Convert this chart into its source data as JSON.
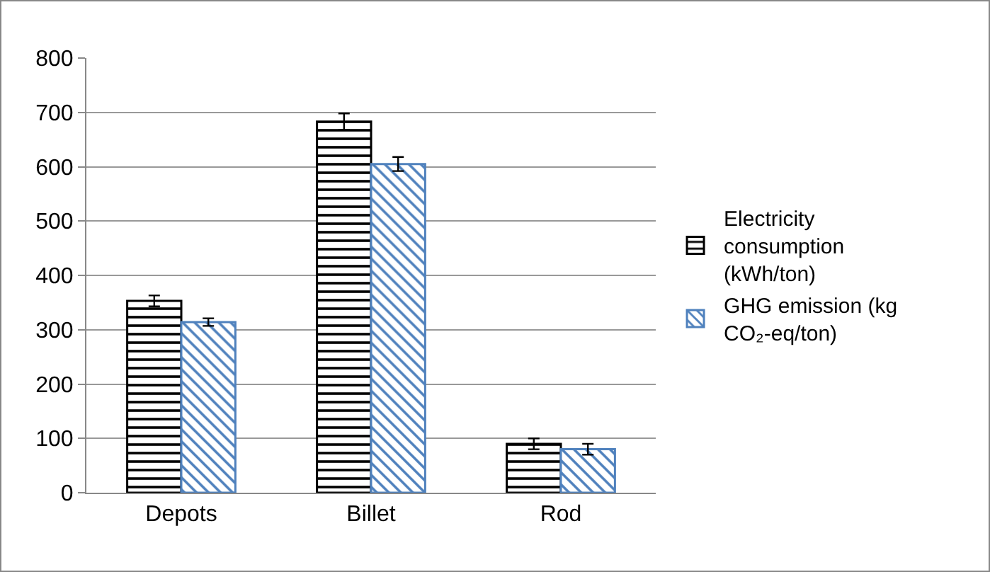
{
  "chart_data": {
    "type": "bar",
    "categories": [
      "Depots",
      "Billet",
      "Rod"
    ],
    "series": [
      {
        "name": "Electricity consumption (kWh/ton)",
        "color": "#000000",
        "values": [
          353,
          683,
          90
        ],
        "errors": [
          10,
          15,
          10
        ]
      },
      {
        "name": "GHG emission (kg CO₂-eq/ton)",
        "color": "#4f81bd",
        "values": [
          314,
          605,
          80
        ],
        "errors": [
          7,
          13,
          10
        ]
      }
    ],
    "ylim": [
      0,
      800
    ],
    "yticks": [
      0,
      100,
      200,
      300,
      400,
      500,
      600,
      700,
      800
    ],
    "grid": "y",
    "legend": "right"
  }
}
